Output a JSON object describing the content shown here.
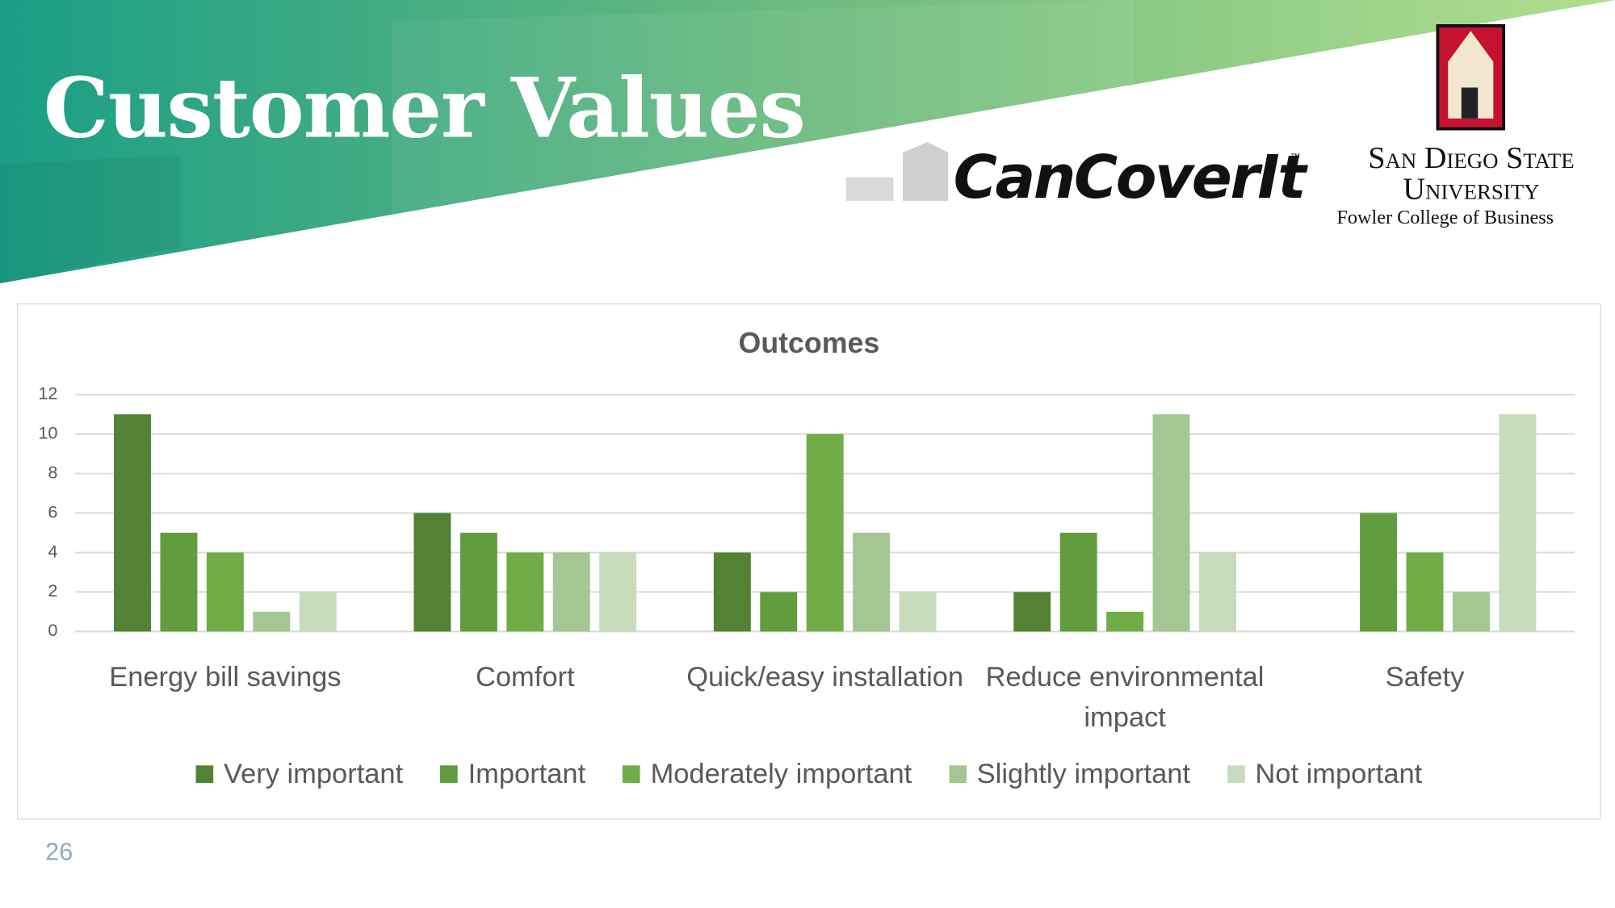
{
  "header": {
    "title": "Customer Values"
  },
  "logos": {
    "brand": "CanCoverIt",
    "trademark": "™",
    "university": [
      "San Diego State",
      "University"
    ],
    "college": "Fowler College of Business"
  },
  "chart_data": {
    "type": "bar",
    "title": "Outcomes",
    "categories": [
      "Energy bill savings",
      "Comfort",
      "Quick/easy installation",
      "Reduce environmental impact",
      "Safety"
    ],
    "series": [
      {
        "name": "Very important",
        "color": "#548235",
        "values": [
          11,
          6,
          4,
          2,
          0
        ]
      },
      {
        "name": "Important",
        "color": "#619c3f",
        "values": [
          5,
          5,
          2,
          5,
          6
        ]
      },
      {
        "name": "Moderately important",
        "color": "#70ad47",
        "values": [
          4,
          4,
          10,
          1,
          4
        ]
      },
      {
        "name": "Slightly important",
        "color": "#a4c693",
        "values": [
          1,
          4,
          5,
          11,
          2
        ]
      },
      {
        "name": "Not important",
        "color": "#c6dcbc",
        "values": [
          2,
          4,
          2,
          4,
          11
        ]
      }
    ],
    "ylim": [
      0,
      12
    ],
    "yticks": [
      0,
      2,
      4,
      6,
      8,
      10,
      12
    ],
    "grid": true,
    "legend": "bottom"
  },
  "page_number": 26
}
